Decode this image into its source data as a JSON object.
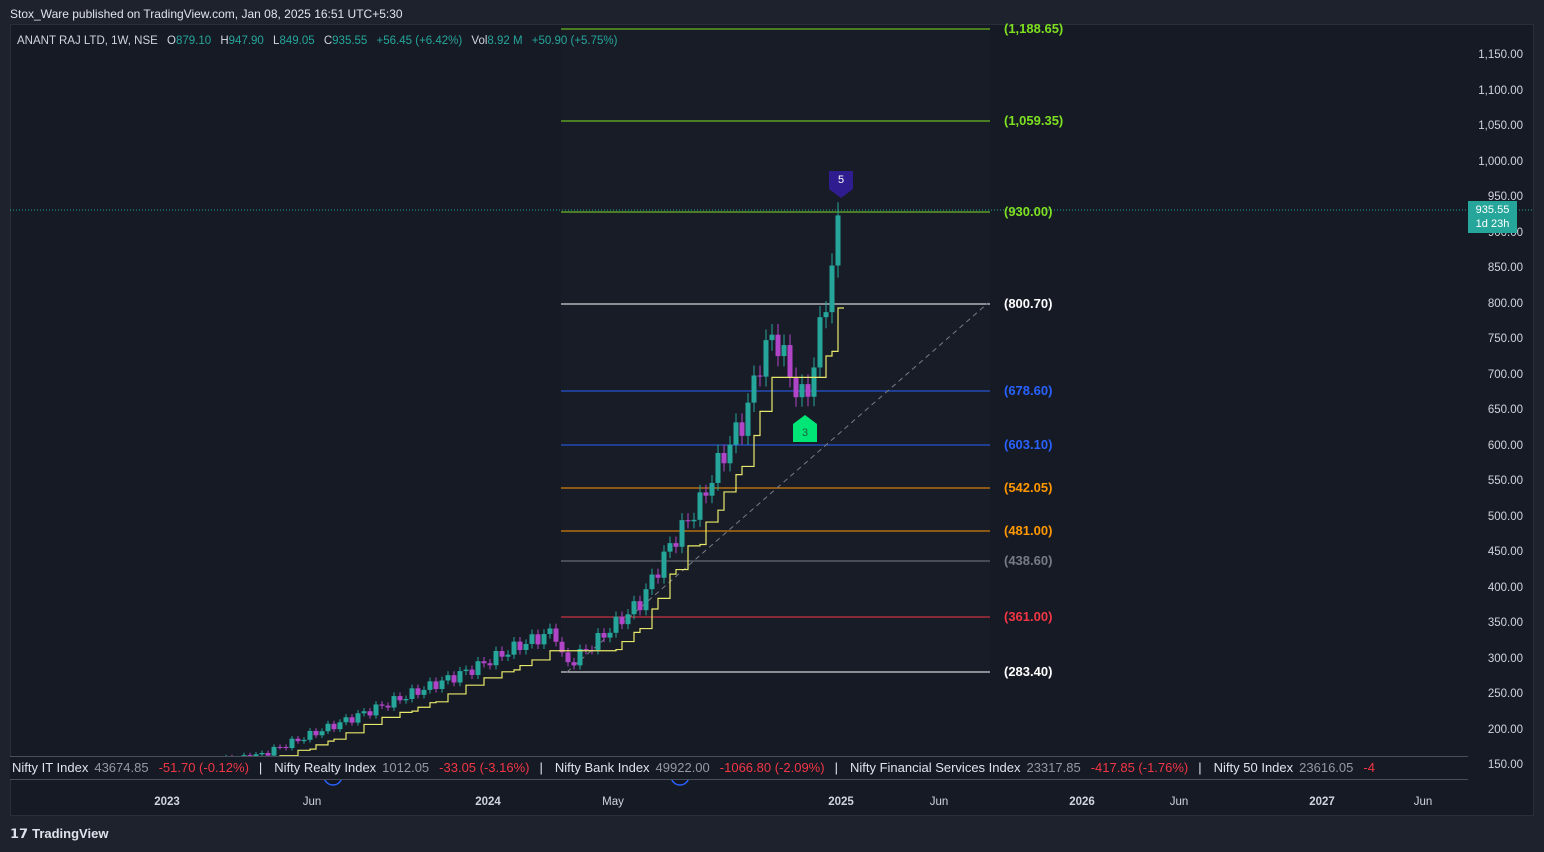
{
  "header": {
    "publisher_line": "Stox_Ware published on TradingView.com, Jan 08, 2025 16:51 UTC+5:30"
  },
  "legend": {
    "symbol": "ANANT RAJ LTD, 1W, NSE",
    "open_label": "O",
    "open": "879.10",
    "high_label": "H",
    "high": "947.90",
    "low_label": "L",
    "low": "849.05",
    "close_label": "C",
    "close": "935.55",
    "change": "+56.45 (+6.42%)",
    "vol_label": "Vol",
    "vol": "8.92 M",
    "vol_change": "+50.90 (+5.75%)"
  },
  "price_axis": [
    "1,150.00",
    "1,100.00",
    "1,050.00",
    "1,000.00",
    "950.00",
    "900.00",
    "850.00",
    "800.00",
    "750.00",
    "700.00",
    "650.00",
    "600.00",
    "550.00",
    "500.00",
    "450.00",
    "400.00",
    "350.00",
    "300.00",
    "250.00",
    "200.00",
    "150.00"
  ],
  "time_axis": [
    {
      "label": "2023",
      "year": true
    },
    {
      "label": "Jun",
      "year": false
    },
    {
      "label": "2024",
      "year": true
    },
    {
      "label": "May",
      "year": false
    },
    {
      "label": "2025",
      "year": true
    },
    {
      "label": "Jun",
      "year": false
    },
    {
      "label": "2026",
      "year": true
    },
    {
      "label": "Jun",
      "year": false
    },
    {
      "label": "2027",
      "year": true
    },
    {
      "label": "Jun",
      "year": false
    }
  ],
  "current_price": {
    "price": "935.55",
    "countdown": "1d 23h",
    "color": "#26a69a"
  },
  "fib_levels": [
    {
      "label": "(1,188.65)",
      "color": "#7ee020"
    },
    {
      "label": "(1,059.35)",
      "color": "#7ee020"
    },
    {
      "label": "(930.00)",
      "color": "#7ee020"
    },
    {
      "label": "(800.70)",
      "color": "#ffffff"
    },
    {
      "label": "(678.60)",
      "color": "#2962ff"
    },
    {
      "label": "(603.10)",
      "color": "#2962ff"
    },
    {
      "label": "(542.05)",
      "color": "#ff9800"
    },
    {
      "label": "(481.00)",
      "color": "#ff9800"
    },
    {
      "label": "(438.60)",
      "color": "#787b86"
    },
    {
      "label": "(361.00)",
      "color": "#f23645"
    },
    {
      "label": "(283.40)",
      "color": "#ffffff"
    }
  ],
  "markers": {
    "wave5": "5",
    "wave3": "3",
    "dividend": "D"
  },
  "ticker": [
    {
      "name": "Nifty IT Index",
      "value": "43674.85",
      "change": "-51.70 (-0.12%)"
    },
    {
      "name": "Nifty Realty Index",
      "value": "1012.05",
      "change": "-33.05 (-3.16%)"
    },
    {
      "name": "Nifty Bank Index",
      "value": "49922.00",
      "change": "-1066.80 (-2.09%)"
    },
    {
      "name": "Nifty Financial Services Index",
      "value": "23317.85",
      "change": "-417.85 (-1.76%)"
    },
    {
      "name": "Nifty 50 Index",
      "value": "23616.05",
      "change": "-4"
    }
  ],
  "footer": {
    "brand": "TradingView"
  },
  "colors": {
    "up": "#26a69a",
    "down": "#b045c8",
    "trail": "#e8e86a",
    "background": "#161a25"
  }
}
